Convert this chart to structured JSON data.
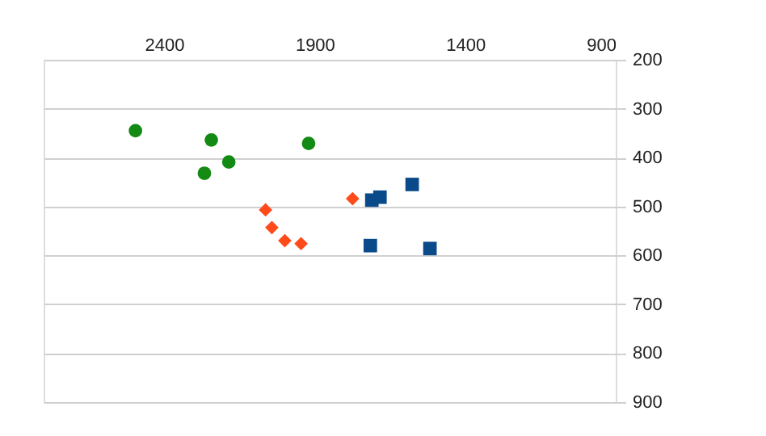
{
  "chart_data": {
    "type": "scatter",
    "xlim": [
      2800,
      900
    ],
    "xticks": [
      2400,
      1900,
      1400,
      900
    ],
    "ylim": [
      900,
      200
    ],
    "yticks": [
      200,
      300,
      400,
      500,
      600,
      700,
      800,
      900
    ],
    "grid": "y",
    "legend": false,
    "series": [
      {
        "color": "#138a13",
        "marker": "circle",
        "x": [
          2495,
          2243,
          2266,
          2185,
          1920
        ],
        "values": [
          345,
          364,
          432,
          409,
          371
        ]
      },
      {
        "color": "#ff4a1a",
        "marker": "diamond",
        "x": [
          2063,
          2042,
          1999,
          1945,
          1774
        ],
        "values": [
          507,
          543,
          570,
          576,
          484
        ]
      },
      {
        "color": "#0a4a8a",
        "marker": "square",
        "x": [
          1710,
          1683,
          1576,
          1715,
          1517
        ],
        "values": [
          487,
          481,
          455,
          580,
          586
        ]
      }
    ]
  }
}
